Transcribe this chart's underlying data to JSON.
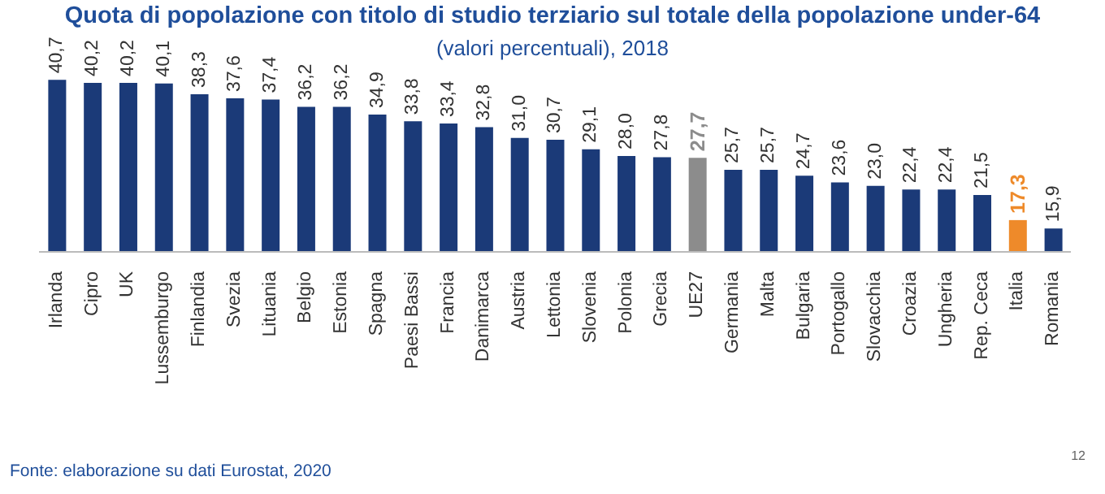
{
  "chart_data": {
    "type": "bar",
    "title": "Quota di popolazione con titolo di studio terziario sul totale della popolazione under-64",
    "subtitle": "(valori percentuali), 2018",
    "categories": [
      "Irlanda",
      "Cipro",
      "UK",
      "Lussemburgo",
      "Finlandia",
      "Svezia",
      "Lituania",
      "Belgio",
      "Estonia",
      "Spagna",
      "Paesi Bassi",
      "Francia",
      "Danimarca",
      "Austria",
      "Lettonia",
      "Slovenia",
      "Polonia",
      "Grecia",
      "UE27",
      "Germania",
      "Malta",
      "Bulgaria",
      "Portogallo",
      "Slovacchia",
      "Croazia",
      "Ungheria",
      "Rep. Ceca",
      "Italia",
      "Romania"
    ],
    "values": [
      40.7,
      40.2,
      40.2,
      40.1,
      38.3,
      37.6,
      37.4,
      36.2,
      36.2,
      34.9,
      33.8,
      33.4,
      32.8,
      31.0,
      30.7,
      29.1,
      28.0,
      27.8,
      27.7,
      25.7,
      25.7,
      24.7,
      23.6,
      23.0,
      22.4,
      22.4,
      21.5,
      17.3,
      15.9
    ],
    "value_labels": [
      "40,7",
      "40,2",
      "40,2",
      "40,1",
      "38,3",
      "37,6",
      "37,4",
      "36,2",
      "36,2",
      "34,9",
      "33,8",
      "33,4",
      "32,8",
      "31,0",
      "30,7",
      "29,1",
      "28,0",
      "27,8",
      "27,7",
      "25,7",
      "25,7",
      "24,7",
      "23,6",
      "23,0",
      "22,4",
      "22,4",
      "21,5",
      "17,3",
      "15,9"
    ],
    "colors": [
      "#1b3a78",
      "#1b3a78",
      "#1b3a78",
      "#1b3a78",
      "#1b3a78",
      "#1b3a78",
      "#1b3a78",
      "#1b3a78",
      "#1b3a78",
      "#1b3a78",
      "#1b3a78",
      "#1b3a78",
      "#1b3a78",
      "#1b3a78",
      "#1b3a78",
      "#1b3a78",
      "#1b3a78",
      "#1b3a78",
      "#8c8c8c",
      "#1b3a78",
      "#1b3a78",
      "#1b3a78",
      "#1b3a78",
      "#1b3a78",
      "#1b3a78",
      "#1b3a78",
      "#1b3a78",
      "#ee8a2a",
      "#1b3a78"
    ],
    "ylim": [
      12,
      41
    ],
    "tick_labels": "x",
    "grid": false,
    "legend": false,
    "annotations": [
      "Fonte: elaborazione su dati Eurostat, 2020",
      "12"
    ]
  }
}
